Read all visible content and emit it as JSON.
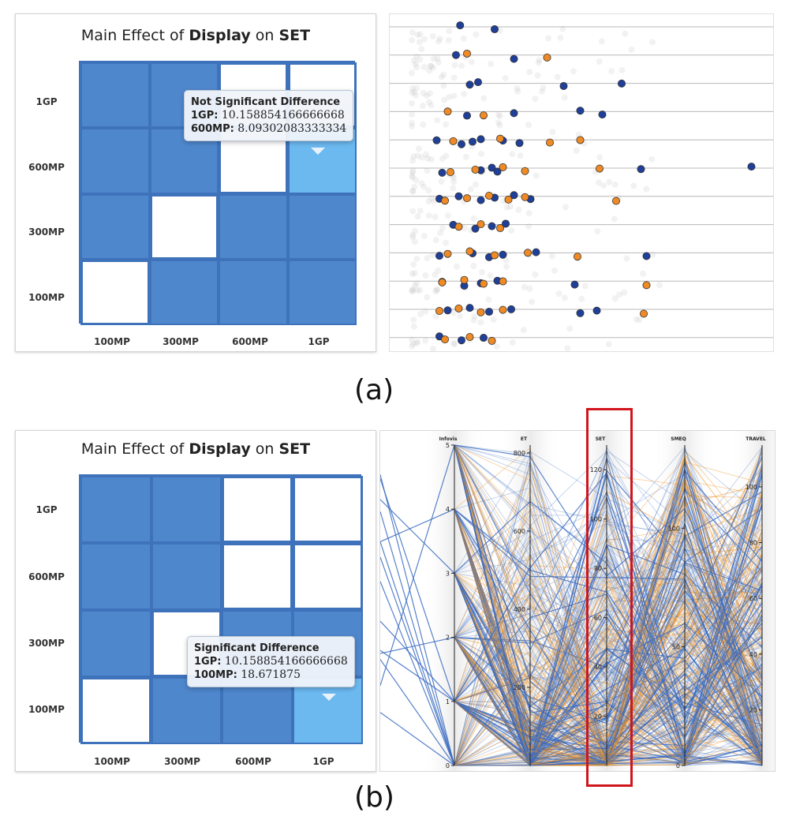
{
  "colors": {
    "significant": "#4f87cd",
    "not_significant": "#ffffff",
    "highlight": "#6cb9f0",
    "grid_border": "#3e73bb",
    "blue_point": "#1f3f99",
    "orange_point": "#f08a24",
    "pc_blue": "#3a6cc2",
    "pc_orange": "#f0901c",
    "red_box": "#d0161c"
  },
  "panel_a": {
    "matrix": {
      "title_prefix": "Main Effect of ",
      "title_factor": "Display",
      "title_on": " on ",
      "title_measure": "SET",
      "row_labels": [
        "1GP",
        "600MP",
        "300MP",
        "100MP"
      ],
      "col_labels": [
        "100MP",
        "300MP",
        "600MP",
        "1GP"
      ],
      "cells": [
        [
          "sig",
          "sig",
          "ns",
          "ns"
        ],
        [
          "sig",
          "sig",
          "ns",
          "highlight"
        ],
        [
          "sig",
          "ns",
          "sig",
          "sig"
        ],
        [
          "ns",
          "sig",
          "sig",
          "sig"
        ]
      ],
      "tooltip": {
        "title": "Not Significant Difference",
        "line1_label": "1GP:",
        "line1_value": " 10.158854166666668",
        "line2_label": "600MP:",
        "line2_value": " 8.09302083333334"
      }
    }
  },
  "panel_b": {
    "matrix": {
      "title_prefix": "Main Effect of ",
      "title_factor": "Display",
      "title_on": " on ",
      "title_measure": "SET",
      "row_labels": [
        "1GP",
        "600MP",
        "300MP",
        "100MP"
      ],
      "col_labels": [
        "100MP",
        "300MP",
        "600MP",
        "1GP"
      ],
      "cells": [
        [
          "sig",
          "sig",
          "ns",
          "ns"
        ],
        [
          "sig",
          "sig",
          "ns",
          "ns"
        ],
        [
          "sig",
          "ns",
          "sig",
          "sig"
        ],
        [
          "ns",
          "sig",
          "sig",
          "highlight"
        ]
      ],
      "tooltip": {
        "title": "Significant Difference",
        "line1_label": "1GP:",
        "line1_value": " 10.158854166666668",
        "line2_label": "100MP:",
        "line2_value": " 18.671875"
      }
    }
  },
  "captions": {
    "a": "(a)",
    "b": "(b)"
  },
  "chart_data": [
    {
      "type": "heatmap",
      "panel": "a-left",
      "title": "Main Effect of Display on SET",
      "rows": [
        "1GP",
        "600MP",
        "300MP",
        "100MP"
      ],
      "columns": [
        "100MP",
        "300MP",
        "600MP",
        "1GP"
      ],
      "significance": [
        [
          1,
          1,
          0,
          0
        ],
        [
          1,
          1,
          0,
          0
        ],
        [
          1,
          0,
          1,
          1
        ],
        [
          0,
          1,
          1,
          1
        ]
      ],
      "highlighted_pair": [
        "600MP",
        "1GP"
      ],
      "tooltip_values": {
        "1GP": 10.158854166666668,
        "600MP": 8.09302083333334
      }
    },
    {
      "type": "scatter",
      "panel": "a-right",
      "rows": 12,
      "series": [
        {
          "color": "blue",
          "points": [
            [
              0.35,
              0
            ],
            [
              0.6,
              0
            ],
            [
              0.32,
              1
            ],
            [
              0.74,
              1
            ],
            [
              0.42,
              2
            ],
            [
              0.48,
              2
            ],
            [
              1.1,
              2
            ],
            [
              1.52,
              2
            ],
            [
              0.4,
              3
            ],
            [
              0.74,
              3
            ],
            [
              1.22,
              3
            ],
            [
              1.38,
              3
            ],
            [
              0.18,
              4
            ],
            [
              0.36,
              4
            ],
            [
              0.44,
              4
            ],
            [
              0.5,
              4
            ],
            [
              0.78,
              4
            ],
            [
              0.66,
              4
            ],
            [
              0.22,
              5
            ],
            [
              0.5,
              5
            ],
            [
              0.58,
              5
            ],
            [
              0.62,
              5
            ],
            [
              1.66,
              5
            ],
            [
              2.46,
              5
            ],
            [
              0.2,
              6
            ],
            [
              0.34,
              6
            ],
            [
              0.5,
              6
            ],
            [
              0.6,
              6
            ],
            [
              0.74,
              6
            ],
            [
              0.86,
              6
            ],
            [
              0.3,
              7
            ],
            [
              0.46,
              7
            ],
            [
              0.58,
              7
            ],
            [
              0.68,
              7
            ],
            [
              0.2,
              8
            ],
            [
              0.44,
              8
            ],
            [
              0.56,
              8
            ],
            [
              0.66,
              8
            ],
            [
              0.9,
              8
            ],
            [
              1.7,
              8
            ],
            [
              0.22,
              9
            ],
            [
              0.38,
              9
            ],
            [
              0.5,
              9
            ],
            [
              0.62,
              9
            ],
            [
              1.18,
              9
            ],
            [
              0.26,
              10
            ],
            [
              0.42,
              10
            ],
            [
              0.56,
              10
            ],
            [
              0.72,
              10
            ],
            [
              1.22,
              10
            ],
            [
              1.34,
              10
            ],
            [
              0.2,
              11
            ],
            [
              0.36,
              11
            ],
            [
              0.52,
              11
            ]
          ]
        },
        {
          "color": "orange",
          "points": [
            [
              0.4,
              1
            ],
            [
              0.98,
              1
            ],
            [
              0.26,
              3
            ],
            [
              0.52,
              3
            ],
            [
              0.3,
              4
            ],
            [
              0.64,
              4
            ],
            [
              1.0,
              4
            ],
            [
              1.22,
              4
            ],
            [
              0.28,
              5
            ],
            [
              0.46,
              5
            ],
            [
              0.66,
              5
            ],
            [
              0.82,
              5
            ],
            [
              1.36,
              5
            ],
            [
              0.24,
              6
            ],
            [
              0.4,
              6
            ],
            [
              0.56,
              6
            ],
            [
              0.7,
              6
            ],
            [
              0.82,
              6
            ],
            [
              1.48,
              6
            ],
            [
              0.34,
              7
            ],
            [
              0.5,
              7
            ],
            [
              0.64,
              7
            ],
            [
              0.26,
              8
            ],
            [
              0.42,
              8
            ],
            [
              0.6,
              8
            ],
            [
              0.84,
              8
            ],
            [
              1.2,
              8
            ],
            [
              0.22,
              9
            ],
            [
              0.38,
              9
            ],
            [
              0.52,
              9
            ],
            [
              0.66,
              9
            ],
            [
              1.7,
              9
            ],
            [
              0.2,
              10
            ],
            [
              0.34,
              10
            ],
            [
              0.5,
              10
            ],
            [
              0.66,
              10
            ],
            [
              1.68,
              10
            ],
            [
              0.24,
              11
            ],
            [
              0.42,
              11
            ],
            [
              0.58,
              11
            ]
          ]
        }
      ]
    },
    {
      "type": "line",
      "panel": "b-right",
      "chart_kind": "parallel_coordinates",
      "axes": [
        {
          "name": "Infovis",
          "ticks": [
            0,
            1,
            2,
            3,
            4,
            5
          ]
        },
        {
          "name": "ET",
          "ticks": [
            200,
            400,
            600,
            800
          ]
        },
        {
          "name": "SET",
          "ticks": [
            20,
            40,
            60,
            80,
            100,
            120
          ]
        },
        {
          "name": "SMEQ",
          "ticks": [
            0,
            50,
            100
          ]
        },
        {
          "name": "TRAVEL",
          "ticks": [
            20,
            40,
            60,
            80,
            100
          ]
        }
      ],
      "highlighted_axis": "SET"
    }
  ]
}
